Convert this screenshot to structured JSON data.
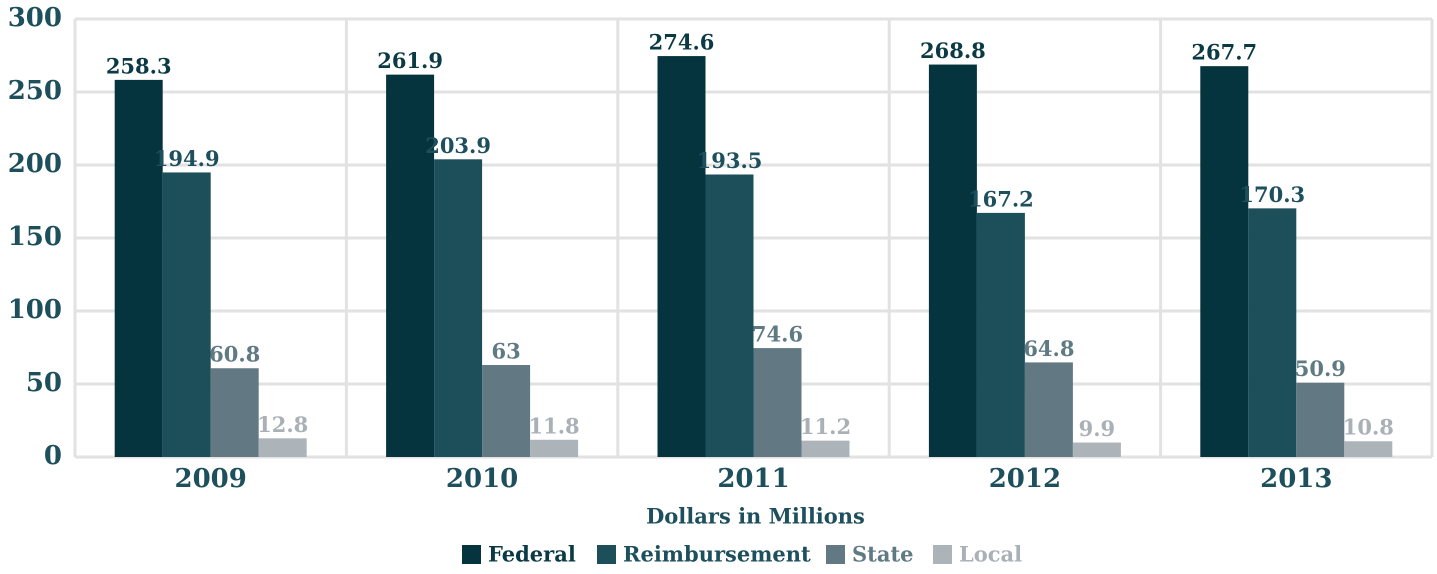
{
  "chart_data": {
    "type": "bar",
    "x_label": "Dollars in Millions",
    "categories": [
      "2009",
      "2010",
      "2011",
      "2012",
      "2013"
    ],
    "series": [
      {
        "name": "Federal",
        "color": "#06343e",
        "label_color": "#0b3a44",
        "values": [
          258.3,
          261.9,
          274.6,
          268.8,
          267.7
        ]
      },
      {
        "name": "Reimbursement",
        "color": "#1d4f5b",
        "label_color": "#1d4f5c",
        "values": [
          194.9,
          203.9,
          193.5,
          167.2,
          170.3
        ]
      },
      {
        "name": "State",
        "color": "#627983",
        "label_color": "#607a84",
        "values": [
          60.8,
          63,
          74.6,
          64.8,
          50.9
        ]
      },
      {
        "name": "Local",
        "color": "#acb4b9",
        "label_color": "#a9b1b6",
        "values": [
          12.8,
          11.8,
          11.2,
          9.9,
          10.8
        ]
      }
    ],
    "ylim": [
      0,
      300
    ],
    "yticks": [
      0,
      50,
      100,
      150,
      200,
      250,
      300
    ],
    "grid": true,
    "legend": "bottom"
  }
}
